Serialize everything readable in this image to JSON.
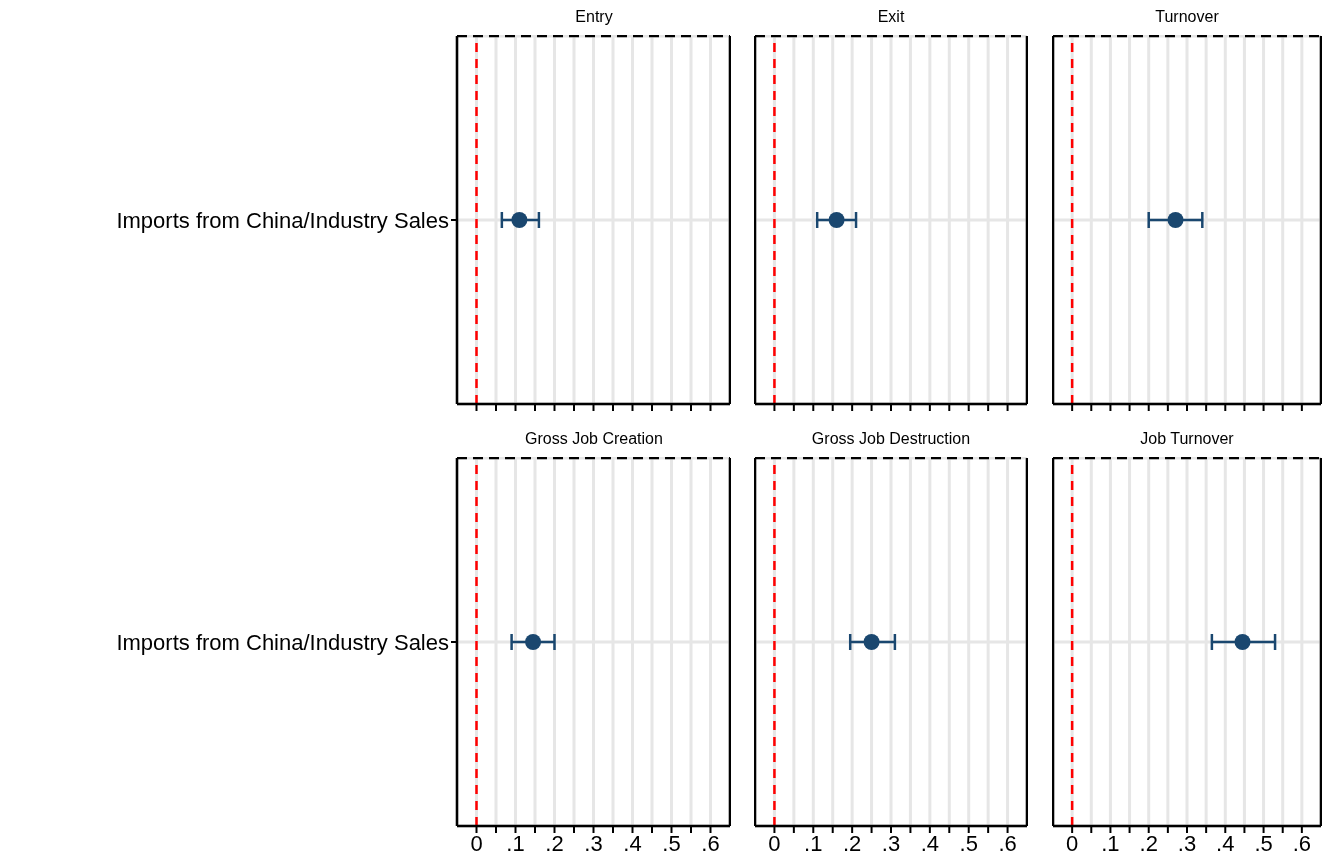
{
  "chart_data": [
    {
      "type": "scatter",
      "title": "Entry",
      "orientation": "horizontal",
      "categories": [
        "Imports from China/Industry Sales"
      ],
      "series": [
        {
          "color": "#1a476f",
          "values": [
            0.11
          ],
          "errors": [
            [
              0.065,
              0.16
            ]
          ]
        }
      ],
      "marker": "circle",
      "xlim": [
        -0.05,
        0.65
      ],
      "xticks": [
        {
          "value": 0,
          "label": null
        },
        {
          "value": 0.05,
          "label": null
        },
        {
          "value": 0.1,
          "label": null
        },
        {
          "value": 0.15,
          "label": null
        },
        {
          "value": 0.2,
          "label": null
        },
        {
          "value": 0.25,
          "label": null
        },
        {
          "value": 0.3,
          "label": null
        },
        {
          "value": 0.35,
          "label": null
        },
        {
          "value": 0.4,
          "label": null
        },
        {
          "value": 0.45,
          "label": null
        },
        {
          "value": 0.5,
          "label": null
        },
        {
          "value": 0.55,
          "label": null
        },
        {
          "value": 0.6,
          "label": null
        }
      ],
      "grid": true,
      "ref_lines": [
        {
          "axis": "x",
          "value": 0,
          "color": "#ff0000",
          "line_style": "dashed"
        }
      ],
      "tick_labels": "y"
    },
    {
      "type": "scatter",
      "title": "Exit",
      "orientation": "horizontal",
      "categories": [
        null
      ],
      "series": [
        {
          "color": "#1a476f",
          "values": [
            0.16
          ],
          "errors": [
            [
              0.11,
              0.21
            ]
          ]
        }
      ],
      "marker": "circle",
      "xlim": [
        -0.05,
        0.65
      ],
      "xticks": [
        {
          "value": 0,
          "label": null
        },
        {
          "value": 0.05,
          "label": null
        },
        {
          "value": 0.1,
          "label": null
        },
        {
          "value": 0.15,
          "label": null
        },
        {
          "value": 0.2,
          "label": null
        },
        {
          "value": 0.25,
          "label": null
        },
        {
          "value": 0.3,
          "label": null
        },
        {
          "value": 0.35,
          "label": null
        },
        {
          "value": 0.4,
          "label": null
        },
        {
          "value": 0.45,
          "label": null
        },
        {
          "value": 0.5,
          "label": null
        },
        {
          "value": 0.55,
          "label": null
        },
        {
          "value": 0.6,
          "label": null
        }
      ],
      "grid": true,
      "ref_lines": [
        {
          "axis": "x",
          "value": 0,
          "color": "#ff0000",
          "line_style": "dashed"
        }
      ],
      "tick_labels": false
    },
    {
      "type": "scatter",
      "title": "Turnover",
      "orientation": "horizontal",
      "categories": [
        null
      ],
      "series": [
        {
          "color": "#1a476f",
          "values": [
            0.27
          ],
          "errors": [
            [
              0.2,
              0.34
            ]
          ]
        }
      ],
      "marker": "circle",
      "xlim": [
        -0.05,
        0.65
      ],
      "xticks": [
        {
          "value": 0,
          "label": null
        },
        {
          "value": 0.05,
          "label": null
        },
        {
          "value": 0.1,
          "label": null
        },
        {
          "value": 0.15,
          "label": null
        },
        {
          "value": 0.2,
          "label": null
        },
        {
          "value": 0.25,
          "label": null
        },
        {
          "value": 0.3,
          "label": null
        },
        {
          "value": 0.35,
          "label": null
        },
        {
          "value": 0.4,
          "label": null
        },
        {
          "value": 0.45,
          "label": null
        },
        {
          "value": 0.5,
          "label": null
        },
        {
          "value": 0.55,
          "label": null
        },
        {
          "value": 0.6,
          "label": null
        }
      ],
      "grid": true,
      "ref_lines": [
        {
          "axis": "x",
          "value": 0,
          "color": "#ff0000",
          "line_style": "dashed"
        }
      ],
      "tick_labels": false
    },
    {
      "type": "scatter",
      "title": "Gross Job Creation",
      "orientation": "horizontal",
      "categories": [
        "Imports from China/Industry Sales"
      ],
      "series": [
        {
          "color": "#1a476f",
          "values": [
            0.145
          ],
          "errors": [
            [
              0.09,
              0.2
            ]
          ]
        }
      ],
      "marker": "circle",
      "xlim": [
        -0.05,
        0.65
      ],
      "xticks": [
        {
          "value": 0,
          "label": "0"
        },
        {
          "value": 0.05,
          "label": null
        },
        {
          "value": 0.1,
          "label": ".1"
        },
        {
          "value": 0.15,
          "label": null
        },
        {
          "value": 0.2,
          "label": ".2"
        },
        {
          "value": 0.25,
          "label": null
        },
        {
          "value": 0.3,
          "label": ".3"
        },
        {
          "value": 0.35,
          "label": null
        },
        {
          "value": 0.4,
          "label": ".4"
        },
        {
          "value": 0.45,
          "label": null
        },
        {
          "value": 0.5,
          "label": ".5"
        },
        {
          "value": 0.55,
          "label": null
        },
        {
          "value": 0.6,
          "label": ".6"
        }
      ],
      "grid": true,
      "ref_lines": [
        {
          "axis": "x",
          "value": 0,
          "color": "#ff0000",
          "line_style": "dashed"
        }
      ]
    },
    {
      "type": "scatter",
      "title": "Gross Job Destruction",
      "orientation": "horizontal",
      "categories": [
        null
      ],
      "series": [
        {
          "color": "#1a476f",
          "values": [
            0.25
          ],
          "errors": [
            [
              0.195,
              0.31
            ]
          ]
        }
      ],
      "marker": "circle",
      "xlim": [
        -0.05,
        0.65
      ],
      "xticks": [
        {
          "value": 0,
          "label": "0"
        },
        {
          "value": 0.05,
          "label": null
        },
        {
          "value": 0.1,
          "label": ".1"
        },
        {
          "value": 0.15,
          "label": null
        },
        {
          "value": 0.2,
          "label": ".2"
        },
        {
          "value": 0.25,
          "label": null
        },
        {
          "value": 0.3,
          "label": ".3"
        },
        {
          "value": 0.35,
          "label": null
        },
        {
          "value": 0.4,
          "label": ".4"
        },
        {
          "value": 0.45,
          "label": null
        },
        {
          "value": 0.5,
          "label": ".5"
        },
        {
          "value": 0.55,
          "label": null
        },
        {
          "value": 0.6,
          "label": ".6"
        }
      ],
      "grid": true,
      "ref_lines": [
        {
          "axis": "x",
          "value": 0,
          "color": "#ff0000",
          "line_style": "dashed"
        }
      ],
      "tick_labels": "x"
    },
    {
      "type": "scatter",
      "title": "Job Turnover",
      "orientation": "horizontal",
      "categories": [
        null
      ],
      "series": [
        {
          "color": "#1a476f",
          "values": [
            0.445
          ],
          "errors": [
            [
              0.365,
              0.53
            ]
          ]
        }
      ],
      "marker": "circle",
      "xlim": [
        -0.05,
        0.65
      ],
      "xticks": [
        {
          "value": 0,
          "label": "0"
        },
        {
          "value": 0.05,
          "label": null
        },
        {
          "value": 0.1,
          "label": ".1"
        },
        {
          "value": 0.15,
          "label": null
        },
        {
          "value": 0.2,
          "label": ".2"
        },
        {
          "value": 0.25,
          "label": null
        },
        {
          "value": 0.3,
          "label": ".3"
        },
        {
          "value": 0.35,
          "label": null
        },
        {
          "value": 0.4,
          "label": ".4"
        },
        {
          "value": 0.45,
          "label": null
        },
        {
          "value": 0.5,
          "label": ".5"
        },
        {
          "value": 0.55,
          "label": null
        },
        {
          "value": 0.6,
          "label": ".6"
        }
      ],
      "grid": true,
      "ref_lines": [
        {
          "axis": "x",
          "value": 0,
          "color": "#ff0000",
          "line_style": "dashed"
        }
      ],
      "tick_labels": "x"
    }
  ]
}
